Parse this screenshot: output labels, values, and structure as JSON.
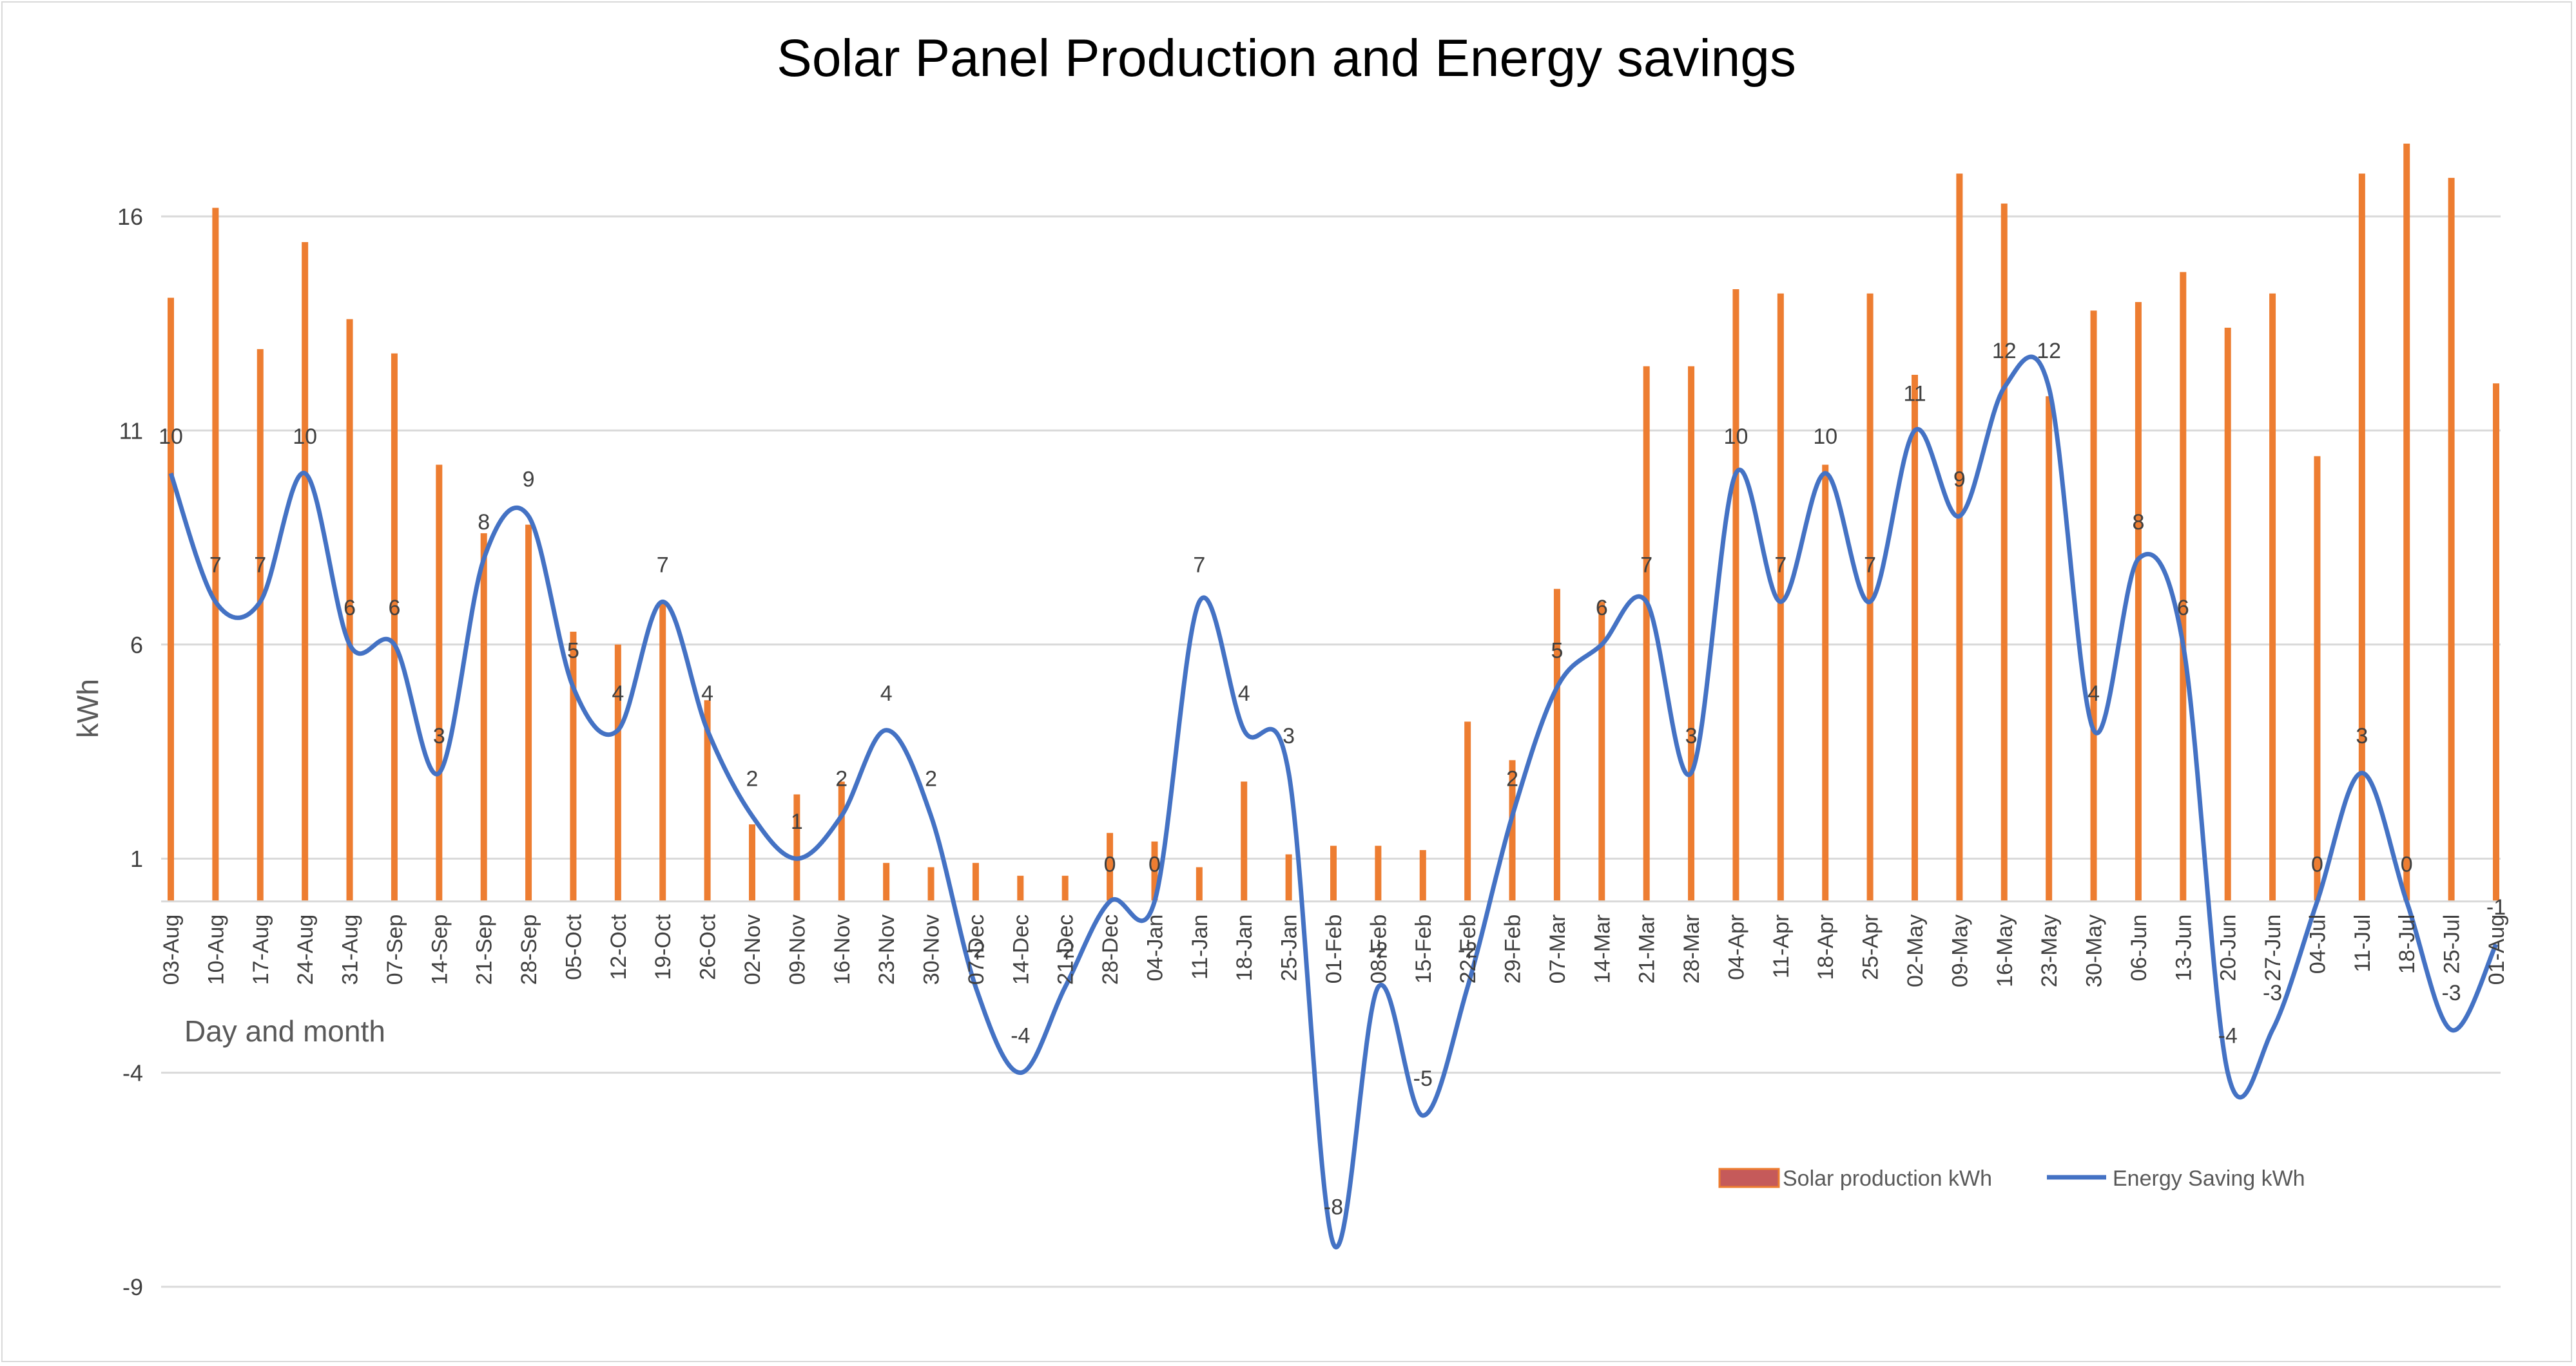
{
  "chart_data": {
    "type": "bar+line",
    "title": "Solar Panel Production and Energy savings",
    "xlabel": "Day and month",
    "ylabel": "kWh",
    "ylim": [
      -9,
      17
    ],
    "yticks": [
      -9,
      -4,
      1,
      6,
      11,
      16
    ],
    "grid": true,
    "legend_position": "bottom-right",
    "categories": [
      "03-Aug",
      "10-Aug",
      "17-Aug",
      "24-Aug",
      "31-Aug",
      "07-Sep",
      "14-Sep",
      "21-Sep",
      "28-Sep",
      "05-Oct",
      "12-Oct",
      "19-Oct",
      "26-Oct",
      "02-Nov",
      "09-Nov",
      "16-Nov",
      "23-Nov",
      "30-Nov",
      "07-Dec",
      "14-Dec",
      "21-Dec",
      "28-Dec",
      "04-Jan",
      "11-Jan",
      "18-Jan",
      "25-Jan",
      "01-Feb",
      "08-Feb",
      "15-Feb",
      "22-Feb",
      "29-Feb",
      "07-Mar",
      "14-Mar",
      "21-Mar",
      "28-Mar",
      "04-Apr",
      "11-Apr",
      "18-Apr",
      "25-Apr",
      "02-May",
      "09-May",
      "16-May",
      "23-May",
      "30-May",
      "06-Jun",
      "13-Jun",
      "20-Jun",
      "27-Jun",
      "04-Jul",
      "11-Jul",
      "18-Jul",
      "25-Jul",
      "01-Aug"
    ],
    "series": [
      {
        "name": "Solar production kWh",
        "kind": "bar",
        "color": "#ed7d31",
        "values": [
          14.1,
          16.2,
          12.9,
          15.4,
          13.6,
          12.8,
          10.2,
          8.6,
          8.8,
          6.3,
          6.0,
          7.0,
          4.7,
          1.8,
          2.5,
          2.8,
          0.9,
          0.8,
          0.9,
          0.6,
          0.6,
          1.6,
          1.4,
          0.8,
          2.8,
          1.1,
          1.3,
          1.3,
          1.2,
          4.2,
          3.3,
          7.3,
          7.0,
          12.5,
          12.5,
          14.3,
          14.2,
          10.2,
          14.2,
          12.3,
          17.0,
          16.3,
          11.8,
          13.8,
          14.0,
          14.7,
          13.4,
          14.2,
          10.4,
          17.0,
          17.7,
          16.9,
          12.1
        ]
      },
      {
        "name": "Energy Saving kWh",
        "kind": "line",
        "smooth": true,
        "color": "#4472c4",
        "values": [
          10,
          7,
          7,
          10,
          6,
          6,
          3,
          8,
          9,
          5,
          4,
          7,
          4,
          2,
          1,
          2,
          4,
          2,
          -2,
          -4,
          -2,
          0,
          0,
          7,
          4,
          3,
          -8,
          -2,
          -5,
          -2,
          2,
          5,
          6,
          7,
          3,
          10,
          7,
          10,
          7,
          11,
          9,
          12,
          12,
          4,
          8,
          6,
          -4,
          -3,
          0,
          3,
          0,
          -3,
          -1
        ]
      }
    ],
    "point_labels": [
      "10",
      "7",
      "7",
      "10",
      "6",
      "6",
      "3",
      "8",
      "9",
      "5",
      "4",
      "7",
      "4",
      "2",
      "1",
      "2",
      "4",
      "2",
      "-2",
      "-4",
      "-2",
      "0",
      "0",
      "7",
      "4",
      "3",
      "-8",
      "-2",
      "-5",
      "-2",
      "2",
      "5",
      "6",
      "7",
      "3",
      "10",
      "7",
      "10",
      "7",
      "11",
      "9",
      "12",
      "12",
      "4",
      "8",
      "6",
      "-4",
      "-3",
      "0",
      "3",
      "0",
      "-3",
      "-1"
    ]
  }
}
